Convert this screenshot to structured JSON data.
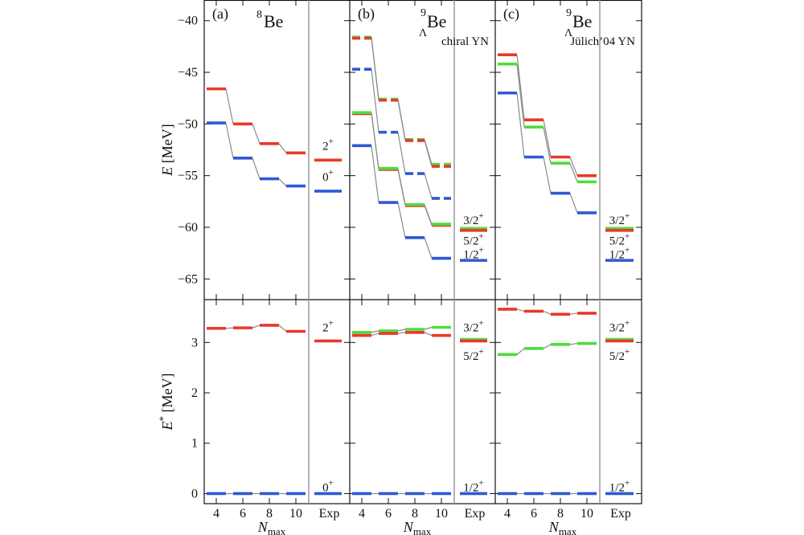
{
  "chart_data": {
    "type": "line",
    "xlabel_main": "N",
    "xlabel_sub": "max",
    "x_tick_labels": [
      "4",
      "6",
      "8",
      "10"
    ],
    "exp_label": "Exp",
    "top_ylabel_sym": "E",
    "top_ylabel_unit": " [MeV]",
    "bottom_ylabel_sym": "E",
    "bottom_ylabel_sup": "*",
    "bottom_ylabel_unit": " [MeV]",
    "top_ylim": [
      -67,
      -38
    ],
    "bottom_ylim": [
      -0.2,
      3.85
    ],
    "top_yticks": [
      "-40",
      "-45",
      "-50",
      "-55",
      "-60",
      "-65"
    ],
    "bottom_yticks": [
      "3",
      "2",
      "1",
      "0"
    ],
    "colors": {
      "red": "#e8392b",
      "blue": "#2f59d3",
      "green": "#4fdd3d",
      "connector": "#8a8a8a"
    },
    "panels": [
      {
        "label": "(a)",
        "title_sup": "8",
        "title_main": "Be",
        "title_sub": "",
        "subtitle": "",
        "series_top": [
          {
            "name": "2+",
            "color": "red",
            "style": "solid",
            "values": [
              -46.6,
              -50.0,
              -51.9,
              -52.8
            ]
          },
          {
            "name": "0+",
            "color": "blue",
            "style": "solid",
            "values": [
              -49.9,
              -53.3,
              -55.3,
              -56.0
            ]
          }
        ],
        "exp_top": [
          {
            "color": "red",
            "value": -53.5
          },
          {
            "color": "blue",
            "value": -56.5
          }
        ],
        "exp_top_labels": [
          {
            "base": "2",
            "sup": "+",
            "at": -52.1
          },
          {
            "base": "0",
            "sup": "+",
            "at": -55.1
          }
        ],
        "series_bottom": [
          {
            "name": "2+",
            "color": "red",
            "style": "solid",
            "values": [
              3.28,
              3.29,
              3.34,
              3.22
            ]
          },
          {
            "name": "0+",
            "color": "blue",
            "style": "solid",
            "values": [
              0,
              0,
              0,
              0
            ]
          }
        ],
        "exp_bottom": [
          {
            "color": "red",
            "value": 3.03
          },
          {
            "color": "blue",
            "value": 0
          }
        ],
        "exp_bottom_labels": [
          {
            "base": "2",
            "sup": "+",
            "at": 3.3
          },
          {
            "base": "0",
            "sup": "+",
            "at": 0.13
          }
        ]
      },
      {
        "label": "(b)",
        "title_sup": "9",
        "title_main": "Be",
        "title_sub": "Λ",
        "subtitle": "chiral YN",
        "series_top": [
          {
            "name": "3/2+ dashed",
            "color": "green",
            "style": "dashed",
            "values": [
              -41.6,
              -47.6,
              -51.5,
              -53.9
            ]
          },
          {
            "name": "5/2+ dashed",
            "color": "red",
            "style": "dashed",
            "values": [
              -41.7,
              -47.7,
              -51.6,
              -54.1
            ]
          },
          {
            "name": "1/2+ dashed",
            "color": "blue",
            "style": "dashed",
            "values": [
              -44.7,
              -50.8,
              -54.8,
              -57.2
            ]
          },
          {
            "name": "5/2+",
            "color": "red",
            "style": "solid",
            "values": [
              -49.0,
              -54.4,
              -57.9,
              -59.8
            ]
          },
          {
            "name": "3/2+",
            "color": "green",
            "style": "solid",
            "values": [
              -48.9,
              -54.3,
              -57.8,
              -59.7
            ]
          },
          {
            "name": "1/2+",
            "color": "blue",
            "style": "solid",
            "values": [
              -52.1,
              -57.6,
              -61.0,
              -63.0
            ]
          }
        ],
        "exp_top": [
          {
            "color": "green",
            "value": -60.1
          },
          {
            "color": "red",
            "value": -60.3
          },
          {
            "color": "blue",
            "value": -63.2
          }
        ],
        "exp_top_labels": [
          {
            "base": "3/2",
            "sup": "+",
            "at": -59.3
          },
          {
            "base": "5/2",
            "sup": "+",
            "at": -61.3
          },
          {
            "base": "1/2",
            "sup": "+",
            "at": -62.6
          }
        ],
        "series_bottom": [
          {
            "name": "3/2+",
            "color": "green",
            "style": "solid",
            "values": [
              3.2,
              3.23,
              3.26,
              3.3
            ]
          },
          {
            "name": "5/2+",
            "color": "red",
            "style": "solid",
            "values": [
              3.14,
              3.18,
              3.2,
              3.14
            ]
          },
          {
            "name": "1/2+",
            "color": "blue",
            "style": "solid",
            "values": [
              0,
              0,
              0,
              0
            ]
          }
        ],
        "exp_bottom": [
          {
            "color": "green",
            "value": 3.06
          },
          {
            "color": "red",
            "value": 3.03
          },
          {
            "color": "blue",
            "value": 0
          }
        ],
        "exp_bottom_labels": [
          {
            "base": "3/2",
            "sup": "+",
            "at": 3.3
          },
          {
            "base": "5/2",
            "sup": "+",
            "at": 2.73
          },
          {
            "base": "1/2",
            "sup": "+",
            "at": 0.13
          }
        ]
      },
      {
        "label": "(c)",
        "title_sup": "9",
        "title_main": "Be",
        "title_sub": "Λ",
        "subtitle": "Jülich’04 YN",
        "series_top": [
          {
            "name": "5/2+",
            "color": "red",
            "style": "solid",
            "values": [
              -43.3,
              -49.6,
              -53.2,
              -55.0
            ]
          },
          {
            "name": "3/2+",
            "color": "green",
            "style": "solid",
            "values": [
              -44.2,
              -50.3,
              -53.8,
              -55.6
            ]
          },
          {
            "name": "1/2+",
            "color": "blue",
            "style": "solid",
            "values": [
              -47.0,
              -53.2,
              -56.7,
              -58.6
            ]
          }
        ],
        "exp_top": [
          {
            "color": "green",
            "value": -60.1
          },
          {
            "color": "red",
            "value": -60.3
          },
          {
            "color": "blue",
            "value": -63.2
          }
        ],
        "exp_top_labels": [
          {
            "base": "3/2",
            "sup": "+",
            "at": -59.3
          },
          {
            "base": "5/2",
            "sup": "+",
            "at": -61.3
          },
          {
            "base": "1/2",
            "sup": "+",
            "at": -62.6
          }
        ],
        "series_bottom": [
          {
            "name": "5/2+",
            "color": "red",
            "style": "solid",
            "values": [
              3.66,
              3.62,
              3.56,
              3.58
            ]
          },
          {
            "name": "3/2+",
            "color": "green",
            "style": "solid",
            "values": [
              2.76,
              2.88,
              2.96,
              2.98
            ]
          },
          {
            "name": "1/2+",
            "color": "blue",
            "style": "solid",
            "values": [
              0,
              0,
              0,
              0
            ]
          }
        ],
        "exp_bottom": [
          {
            "color": "green",
            "value": 3.06
          },
          {
            "color": "red",
            "value": 3.03
          },
          {
            "color": "blue",
            "value": 0
          }
        ],
        "exp_bottom_labels": [
          {
            "base": "3/2",
            "sup": "+",
            "at": 3.3
          },
          {
            "base": "5/2",
            "sup": "+",
            "at": 2.73
          },
          {
            "base": "1/2",
            "sup": "+",
            "at": 0.13
          }
        ]
      }
    ]
  }
}
